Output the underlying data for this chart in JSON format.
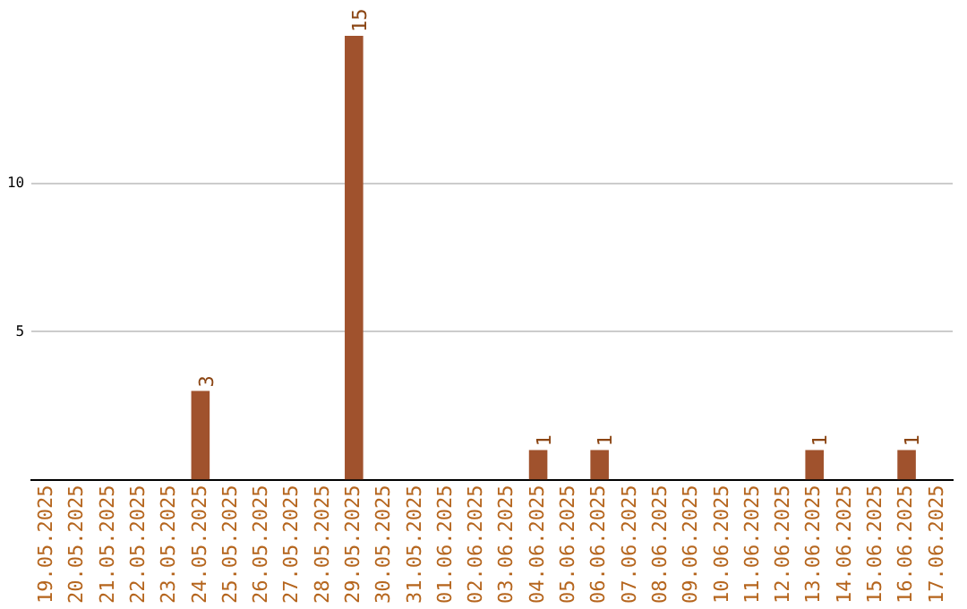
{
  "chart_data": {
    "type": "bar",
    "categories": [
      "19.05.2025",
      "20.05.2025",
      "21.05.2025",
      "22.05.2025",
      "23.05.2025",
      "24.05.2025",
      "25.05.2025",
      "26.05.2025",
      "27.05.2025",
      "28.05.2025",
      "29.05.2025",
      "30.05.2025",
      "31.05.2025",
      "01.06.2025",
      "02.06.2025",
      "03.06.2025",
      "04.06.2025",
      "05.06.2025",
      "06.06.2025",
      "07.06.2025",
      "08.06.2025",
      "09.06.2025",
      "10.06.2025",
      "11.06.2025",
      "12.06.2025",
      "13.06.2025",
      "14.06.2025",
      "15.06.2025",
      "16.06.2025",
      "17.06.2025"
    ],
    "values": [
      0,
      0,
      0,
      0,
      0,
      3,
      0,
      0,
      0,
      0,
      15,
      0,
      0,
      0,
      0,
      0,
      1,
      0,
      1,
      0,
      0,
      0,
      0,
      0,
      0,
      1,
      0,
      0,
      1,
      0
    ],
    "value_labels": [
      null,
      null,
      null,
      null,
      null,
      "3",
      null,
      null,
      null,
      null,
      "15",
      null,
      null,
      null,
      null,
      null,
      "1",
      null,
      "1",
      null,
      null,
      null,
      null,
      null,
      null,
      "1",
      null,
      null,
      "1",
      null
    ],
    "color": "#a0522d",
    "ylim": [
      0,
      15
    ],
    "yticks": [
      5,
      10
    ],
    "grid": "y",
    "legend": false
  }
}
